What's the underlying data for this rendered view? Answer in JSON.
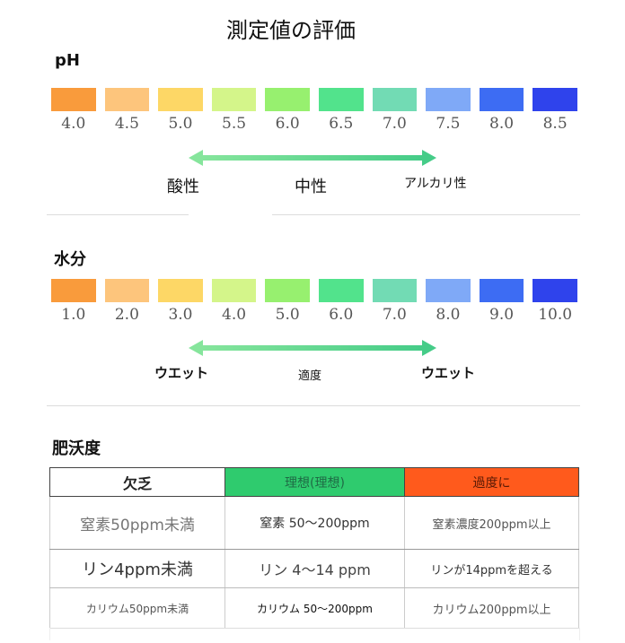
{
  "title": "測定値の評価",
  "ph": {
    "label": "pH",
    "colors": [
      "#f99b3c",
      "#fdc57c",
      "#fdd766",
      "#d4f58a",
      "#97f06f",
      "#52e38c",
      "#72dbb4",
      "#7fa9f7",
      "#3d6cf3",
      "#2f43ec"
    ],
    "ticks": [
      "4.0",
      "4.5",
      "5.0",
      "5.5",
      "6.0",
      "6.5",
      "7.0",
      "7.5",
      "8.0",
      "8.5"
    ],
    "left_label": "酸性",
    "center_label": "中性",
    "right_label": "アルカリ性"
  },
  "moisture": {
    "label": "水分",
    "colors": [
      "#f99b3c",
      "#fdc57c",
      "#fdd766",
      "#d4f58a",
      "#97f06f",
      "#52e38c",
      "#72dbb4",
      "#7fa9f7",
      "#3d6cf3",
      "#2f43ec"
    ],
    "ticks": [
      "1.0",
      "2.0",
      "3.0",
      "4.0",
      "5.0",
      "6.0",
      "7.0",
      "8.0",
      "9.0",
      "10.0"
    ],
    "left_label": "ウエット",
    "center_label": "適度",
    "right_label": "ウエット"
  },
  "fertility": {
    "label": "肥沃度",
    "headers": [
      "欠乏",
      "理想(理想)",
      "過度に"
    ],
    "header_colors": [
      "#ffffff",
      "#2fcb6e",
      "#ff5a1c"
    ],
    "rows": [
      [
        "窒素50ppm未満",
        "窒素 50～200ppm",
        "窒素濃度200ppm以上"
      ],
      [
        "リン4ppm未満",
        "リン 4～14 ppm",
        "リンが14ppmを超える"
      ],
      [
        "カリウム50ppm未満",
        "カリウム 50～200ppm",
        "カリウム200ppm以上"
      ]
    ]
  }
}
